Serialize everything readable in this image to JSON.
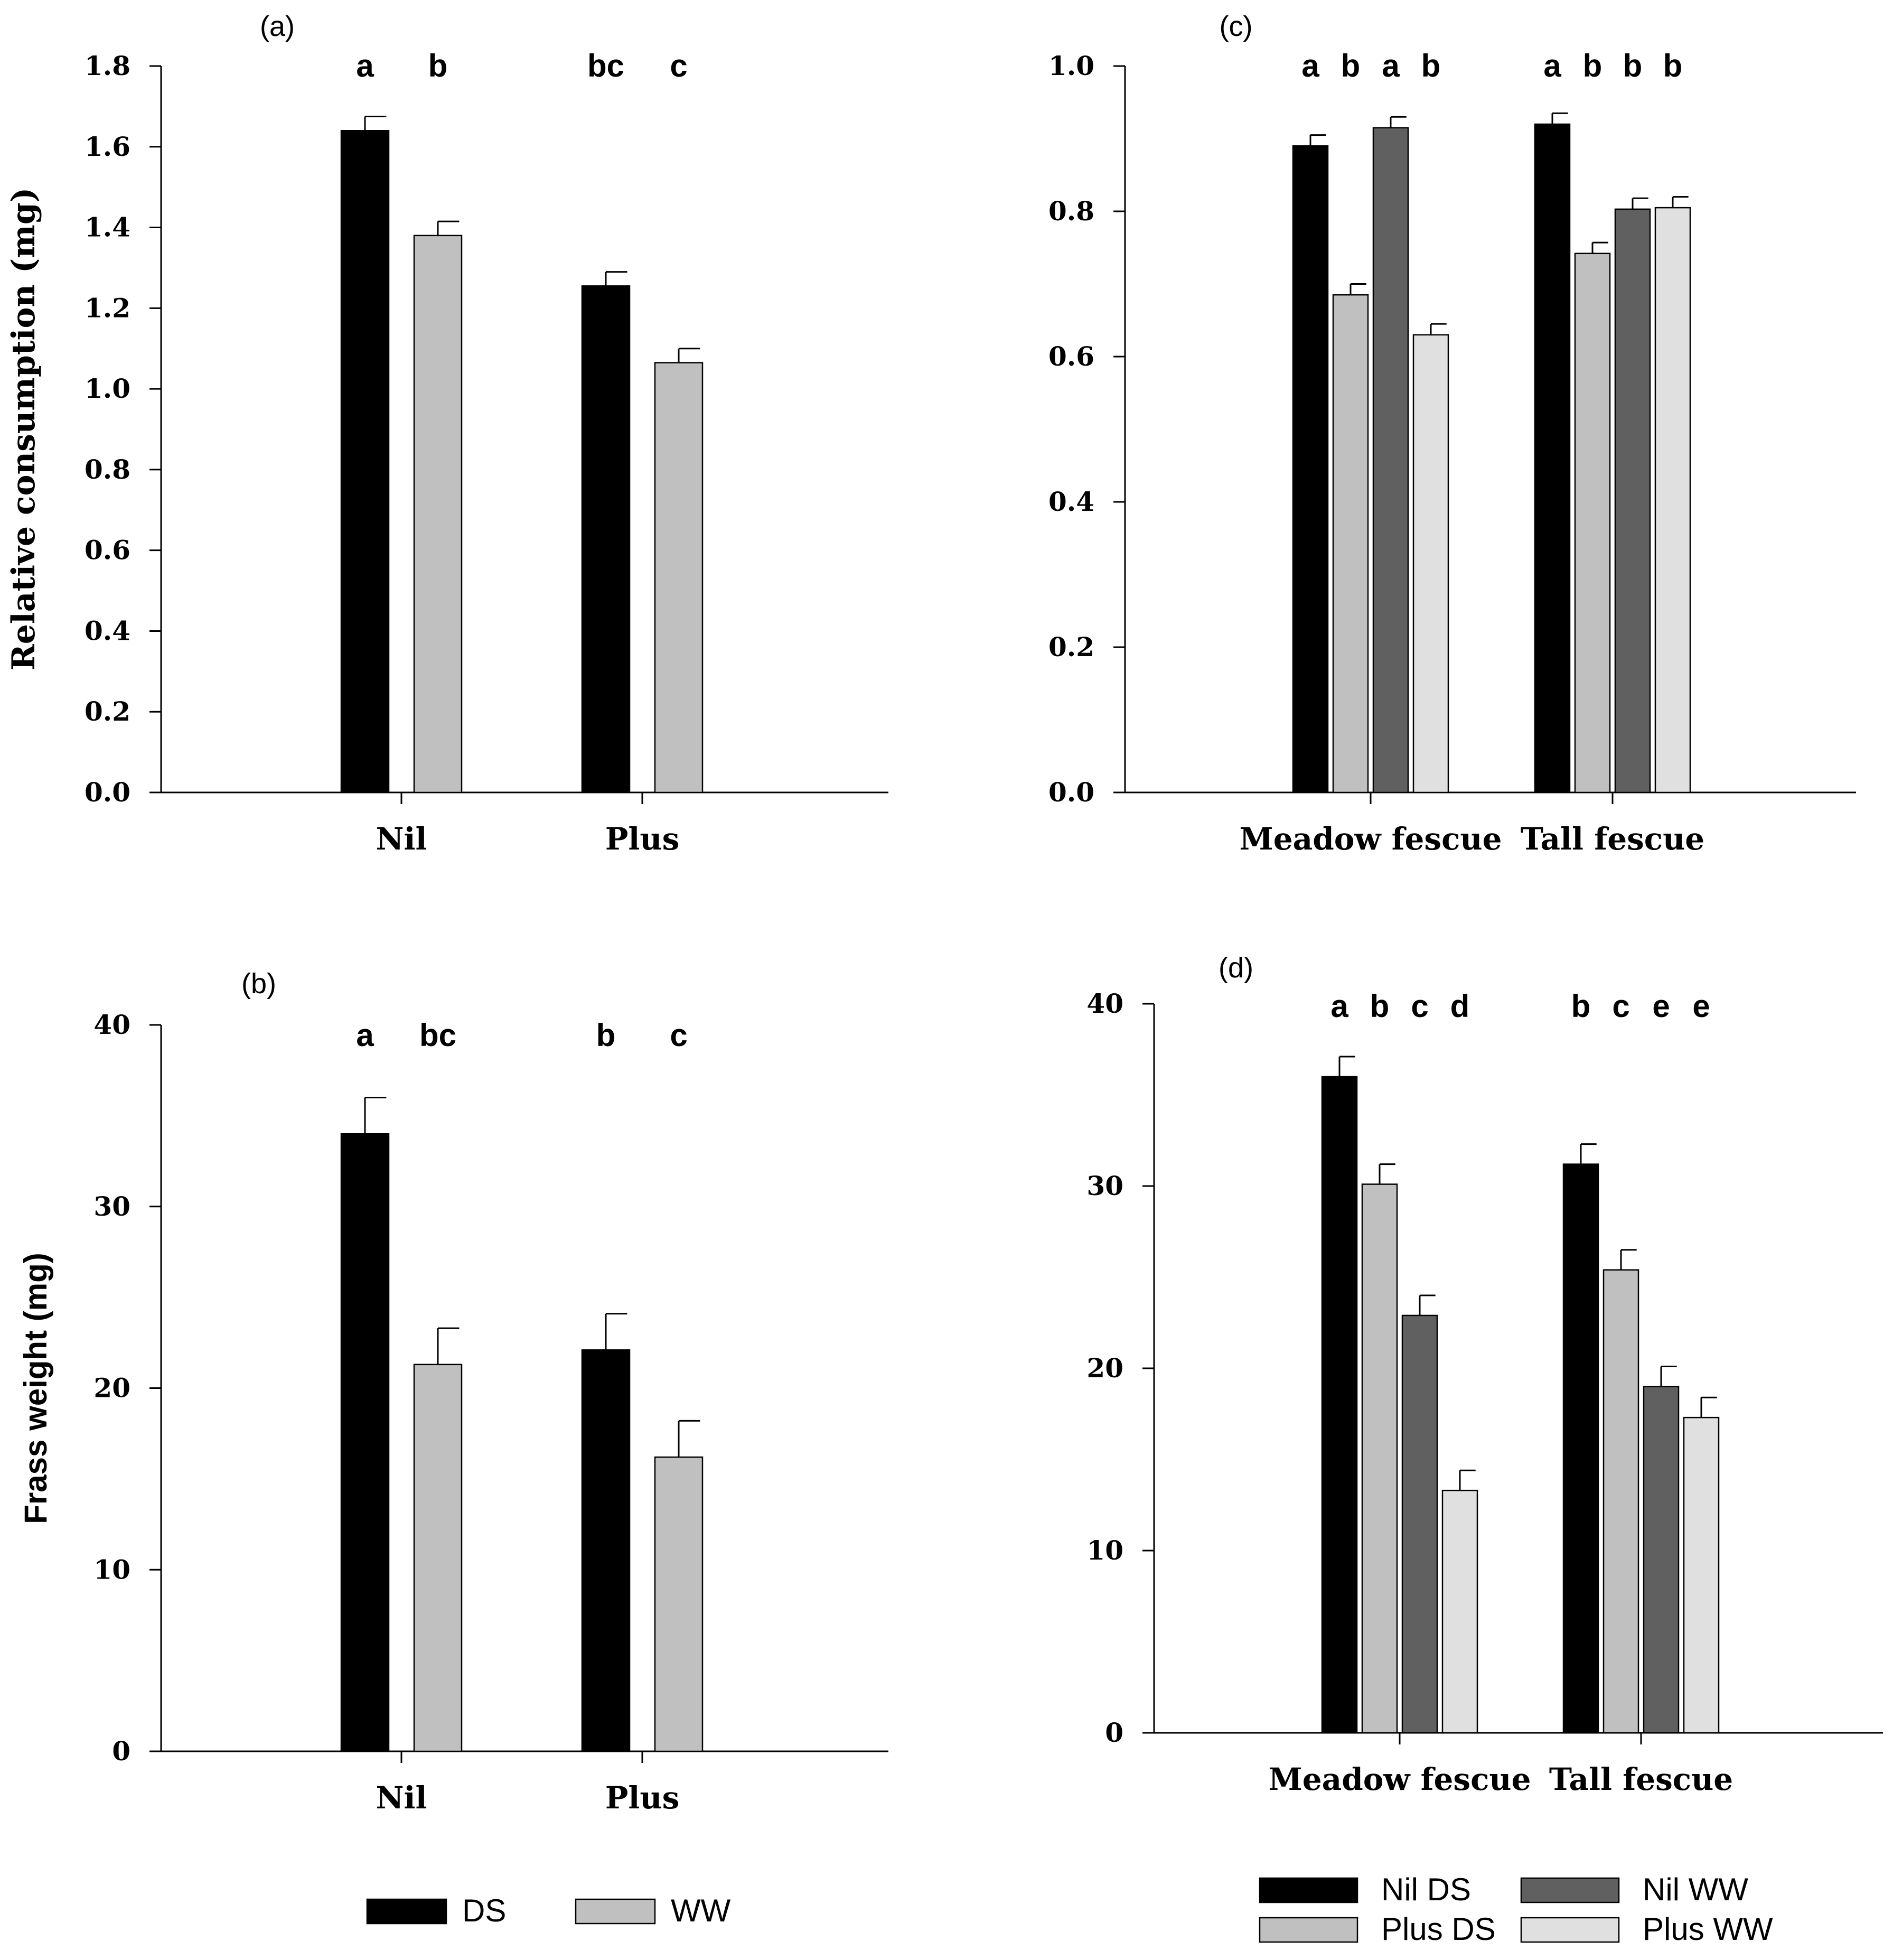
{
  "chart_data": [
    {
      "id": "a",
      "type": "bar",
      "panel_label": "(a)",
      "ylabel": "Relative consumption (mg)",
      "ylim": [
        0,
        1.8
      ],
      "yticks": [
        "0.0",
        "0.2",
        "0.4",
        "0.6",
        "0.8",
        "1.0",
        "1.2",
        "1.4",
        "1.6",
        "1.8"
      ],
      "categories": [
        "Nil",
        "Plus"
      ],
      "series": [
        {
          "name": "DS",
          "color": "#000000",
          "values": [
            1.64,
            1.255
          ],
          "errors": [
            0.035,
            0.035
          ],
          "letters": [
            "a",
            "bc"
          ]
        },
        {
          "name": "WW",
          "color": "#c0c0c0",
          "values": [
            1.38,
            1.065
          ],
          "errors": [
            0.035,
            0.035
          ],
          "letters": [
            "b",
            "c"
          ]
        }
      ]
    },
    {
      "id": "b",
      "type": "bar",
      "panel_label": "(b)",
      "ylabel": "Frass weight (mg)",
      "ylim": [
        0,
        40
      ],
      "yticks": [
        "0",
        "10",
        "20",
        "30",
        "40"
      ],
      "categories": [
        "Nil",
        "Plus"
      ],
      "series": [
        {
          "name": "DS",
          "color": "#000000",
          "values": [
            34.0,
            22.1
          ],
          "errors": [
            2.0,
            2.0
          ],
          "letters": [
            "a",
            "b"
          ]
        },
        {
          "name": "WW",
          "color": "#c0c0c0",
          "values": [
            21.3,
            16.2
          ],
          "errors": [
            2.0,
            2.0
          ],
          "letters": [
            "bc",
            "c"
          ]
        }
      ]
    },
    {
      "id": "c",
      "type": "bar",
      "panel_label": "(c)",
      "ylabel": "",
      "ylim": [
        0,
        1.0
      ],
      "yticks": [
        "0.0",
        "0.2",
        "0.4",
        "0.6",
        "0.8",
        "1.0"
      ],
      "categories": [
        "Meadow fescue",
        "Tall fescue"
      ],
      "series": [
        {
          "name": "Nil DS",
          "color": "#000000",
          "values": [
            0.89,
            0.92
          ],
          "errors": [
            0.015,
            0.015
          ],
          "letters": [
            "a",
            "a"
          ]
        },
        {
          "name": "Plus DS",
          "color": "#c0c0c0",
          "values": [
            0.685,
            0.742
          ],
          "errors": [
            0.015,
            0.015
          ],
          "letters": [
            "b",
            "b"
          ]
        },
        {
          "name": "Nil WW",
          "color": "#606060",
          "values": [
            0.915,
            0.803
          ],
          "errors": [
            0.015,
            0.015
          ],
          "letters": [
            "a",
            "b"
          ]
        },
        {
          "name": "Plus WW",
          "color": "#e0e0e0",
          "values": [
            0.63,
            0.805
          ],
          "errors": [
            0.015,
            0.015
          ],
          "letters": [
            "b",
            "b"
          ]
        }
      ]
    },
    {
      "id": "d",
      "type": "bar",
      "panel_label": "(d)",
      "ylabel": "",
      "ylim": [
        0,
        40
      ],
      "yticks": [
        "0",
        "10",
        "20",
        "30",
        "40"
      ],
      "categories": [
        "Meadow fescue",
        "Tall fescue"
      ],
      "series": [
        {
          "name": "Nil DS",
          "color": "#000000",
          "values": [
            36.0,
            31.2
          ],
          "errors": [
            1.1,
            1.1
          ],
          "letters": [
            "a",
            "b"
          ]
        },
        {
          "name": "Plus DS",
          "color": "#c0c0c0",
          "values": [
            30.1,
            25.4
          ],
          "errors": [
            1.1,
            1.1
          ],
          "letters": [
            "b",
            "c"
          ]
        },
        {
          "name": "Nil WW",
          "color": "#606060",
          "values": [
            22.9,
            19.0
          ],
          "errors": [
            1.1,
            1.1
          ],
          "letters": [
            "c",
            "e"
          ]
        },
        {
          "name": "Plus WW",
          "color": "#e0e0e0",
          "values": [
            13.3,
            17.3
          ],
          "errors": [
            1.1,
            1.1
          ],
          "letters": [
            "d",
            "e"
          ]
        }
      ]
    }
  ],
  "legends": {
    "left": [
      "DS",
      "WW"
    ],
    "right": [
      "Nil DS",
      "Nil WW",
      "Plus DS",
      "Plus WW"
    ]
  }
}
